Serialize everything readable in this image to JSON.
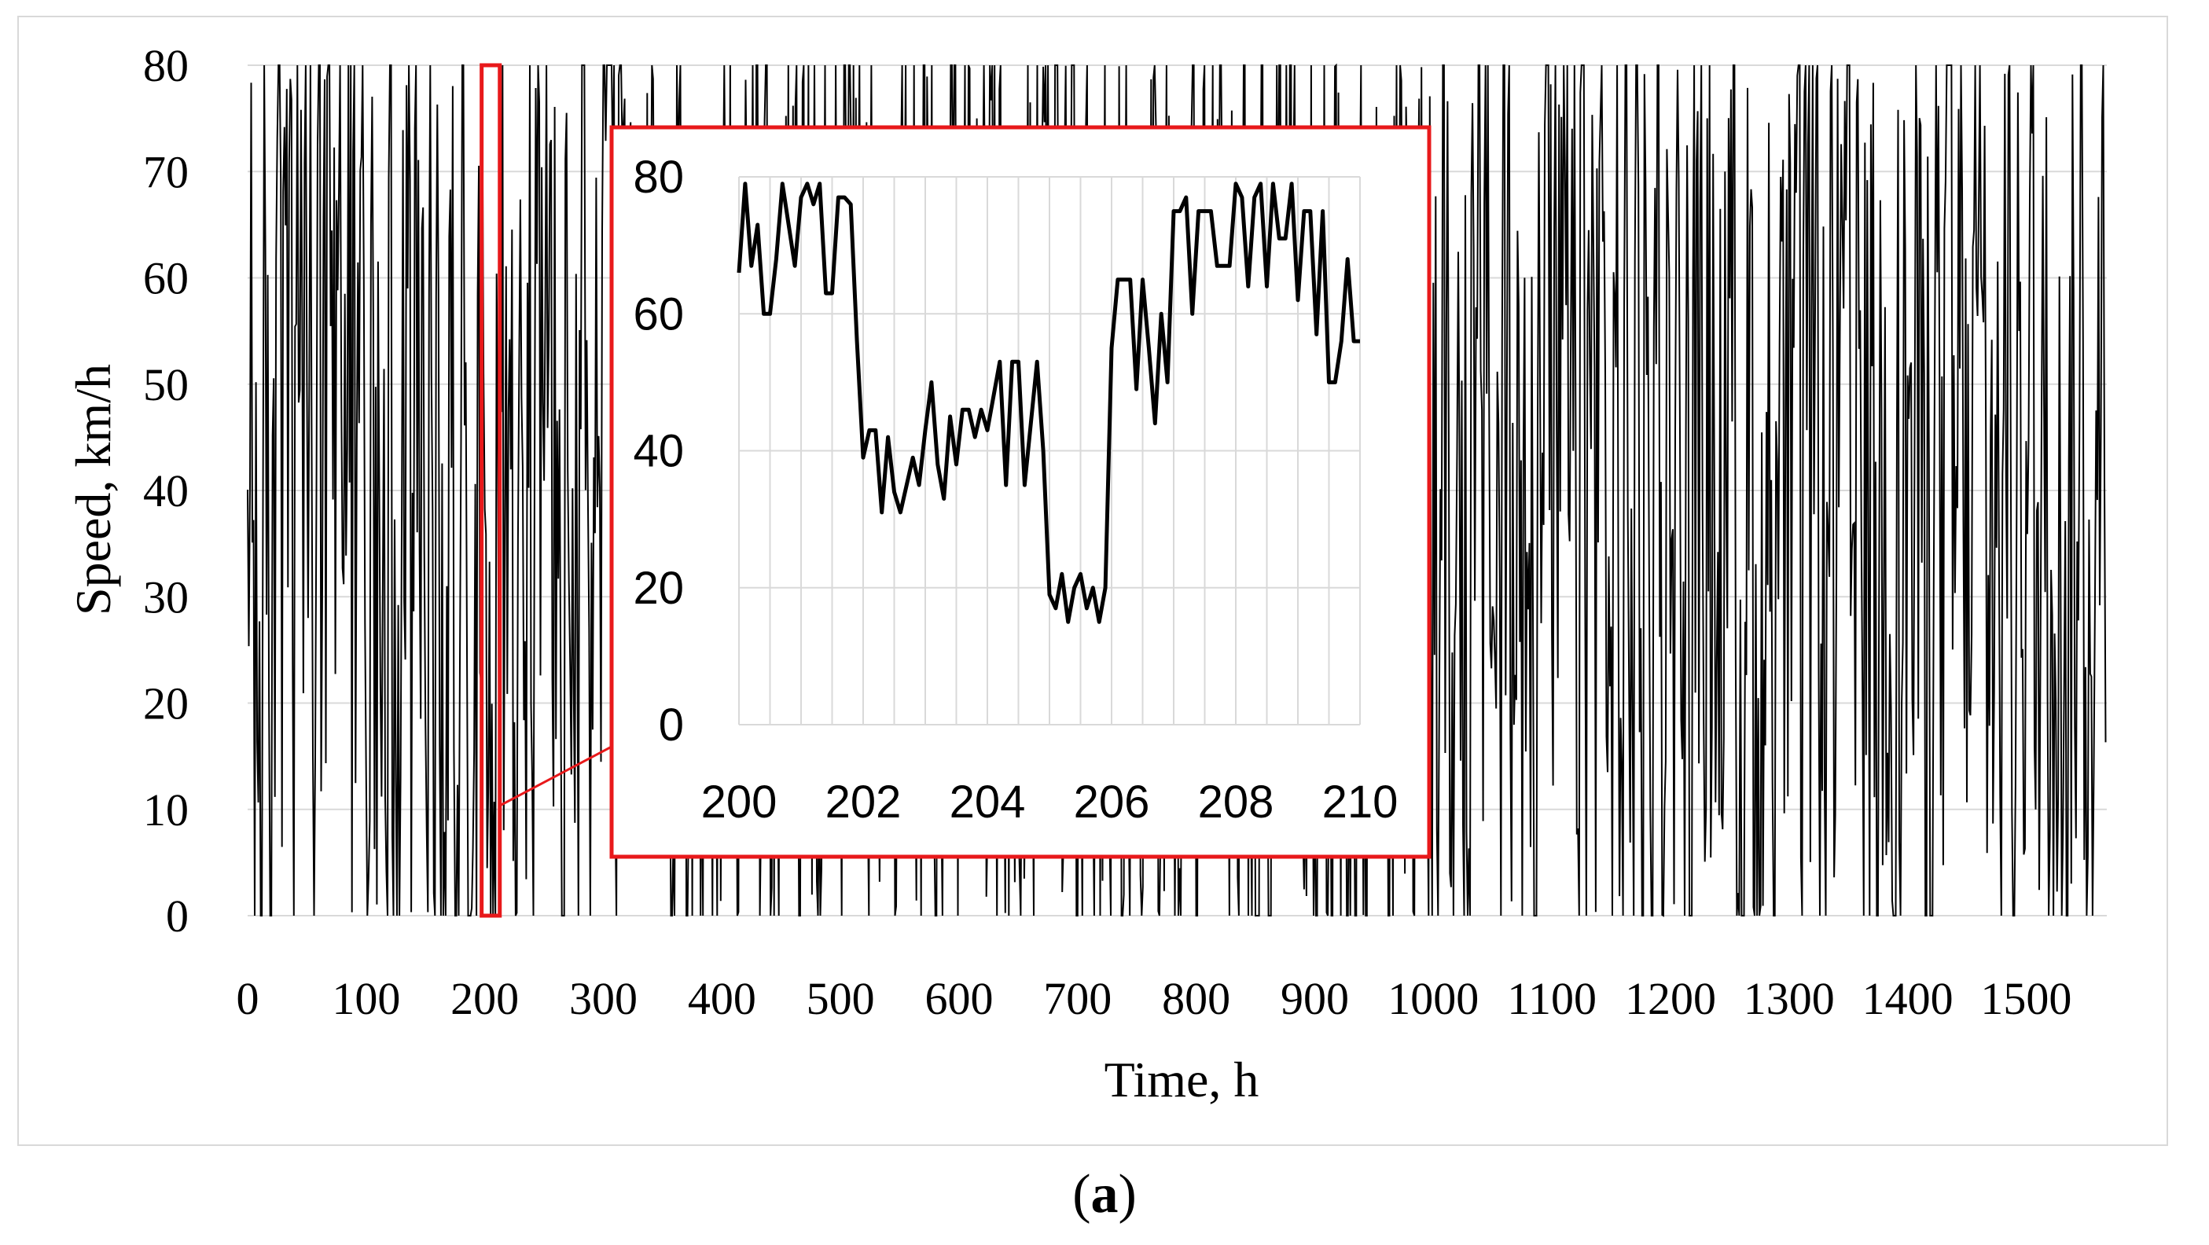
{
  "chart_data": [
    {
      "type": "line",
      "name": "main",
      "xlabel": "Time, h",
      "ylabel": "Speed, km/h",
      "xlim": [
        0,
        1568
      ],
      "ylim": [
        0,
        80
      ],
      "x_ticks": [
        "0",
        "100",
        "200",
        "300",
        "400",
        "500",
        "600",
        "700",
        "800",
        "900",
        "1000",
        "1100",
        "1200",
        "1300",
        "1400",
        "1500"
      ],
      "y_ticks": [
        "0",
        "10",
        "20",
        "30",
        "40",
        "50",
        "60",
        "70",
        "80"
      ],
      "series": [
        {
          "name": "Speed",
          "sampling_interval_h": 1,
          "n_points": 1568,
          "description": "hourly speed, values oscillate between 0 and 80 km/h",
          "color": "#000000"
        }
      ],
      "highlight": {
        "x_range": [
          200,
          210
        ],
        "color": "#e8191b"
      }
    },
    {
      "type": "line",
      "name": "inset",
      "xlim": [
        200,
        210
      ],
      "ylim": [
        0,
        80
      ],
      "x_ticks": [
        "200",
        "202",
        "204",
        "206",
        "208",
        "210"
      ],
      "y_ticks": [
        "0",
        "20",
        "40",
        "60",
        "80"
      ],
      "x": [
        200.0,
        200.1,
        200.2,
        200.3,
        200.4,
        200.5,
        200.6,
        200.7,
        200.8,
        200.9,
        201.0,
        201.1,
        201.2,
        201.3,
        201.4,
        201.5,
        201.6,
        201.7,
        201.8,
        201.9,
        202.0,
        202.1,
        202.2,
        202.3,
        202.4,
        202.5,
        202.6,
        202.7,
        202.8,
        202.9,
        203.0,
        203.1,
        203.2,
        203.3,
        203.4,
        203.5,
        203.6,
        203.7,
        203.8,
        203.9,
        204.0,
        204.1,
        204.2,
        204.3,
        204.4,
        204.5,
        204.6,
        204.7,
        204.8,
        204.9,
        205.0,
        205.1,
        205.2,
        205.3,
        205.4,
        205.5,
        205.6,
        205.7,
        205.8,
        205.9,
        206.0,
        206.1,
        206.2,
        206.3,
        206.4,
        206.5,
        206.6,
        206.7,
        206.8,
        206.9,
        207.0,
        207.1,
        207.2,
        207.3,
        207.4,
        207.5,
        207.6,
        207.7,
        207.8,
        207.9,
        208.0,
        208.1,
        208.2,
        208.3,
        208.4,
        208.5,
        208.6,
        208.7,
        208.8,
        208.9,
        209.0,
        209.1,
        209.2,
        209.3,
        209.4,
        209.5,
        209.6,
        209.7,
        209.8,
        209.9,
        210.0
      ],
      "y": [
        66,
        79,
        67,
        73,
        60,
        60,
        68,
        79,
        73,
        67,
        77,
        79,
        76,
        79,
        63,
        63,
        77,
        77,
        76,
        56,
        39,
        43,
        43,
        31,
        42,
        34,
        31,
        35,
        39,
        35,
        43,
        50,
        38,
        33,
        45,
        38,
        46,
        46,
        42,
        46,
        43,
        48,
        53,
        35,
        53,
        53,
        35,
        44,
        53,
        40,
        19,
        17,
        22,
        15,
        20,
        22,
        17,
        20,
        15,
        20,
        55,
        65,
        65,
        65,
        49,
        65,
        55,
        44,
        60,
        50,
        75,
        75,
        77,
        60,
        75,
        75,
        75,
        67,
        67,
        67,
        79,
        77,
        64,
        77,
        79,
        64,
        79,
        71,
        71,
        79,
        62,
        75,
        75,
        57,
        75,
        50,
        50,
        56,
        68,
        56,
        56
      ],
      "color": "#000000"
    }
  ],
  "caption": {
    "open": "(",
    "letter": "a",
    "close": ")"
  }
}
